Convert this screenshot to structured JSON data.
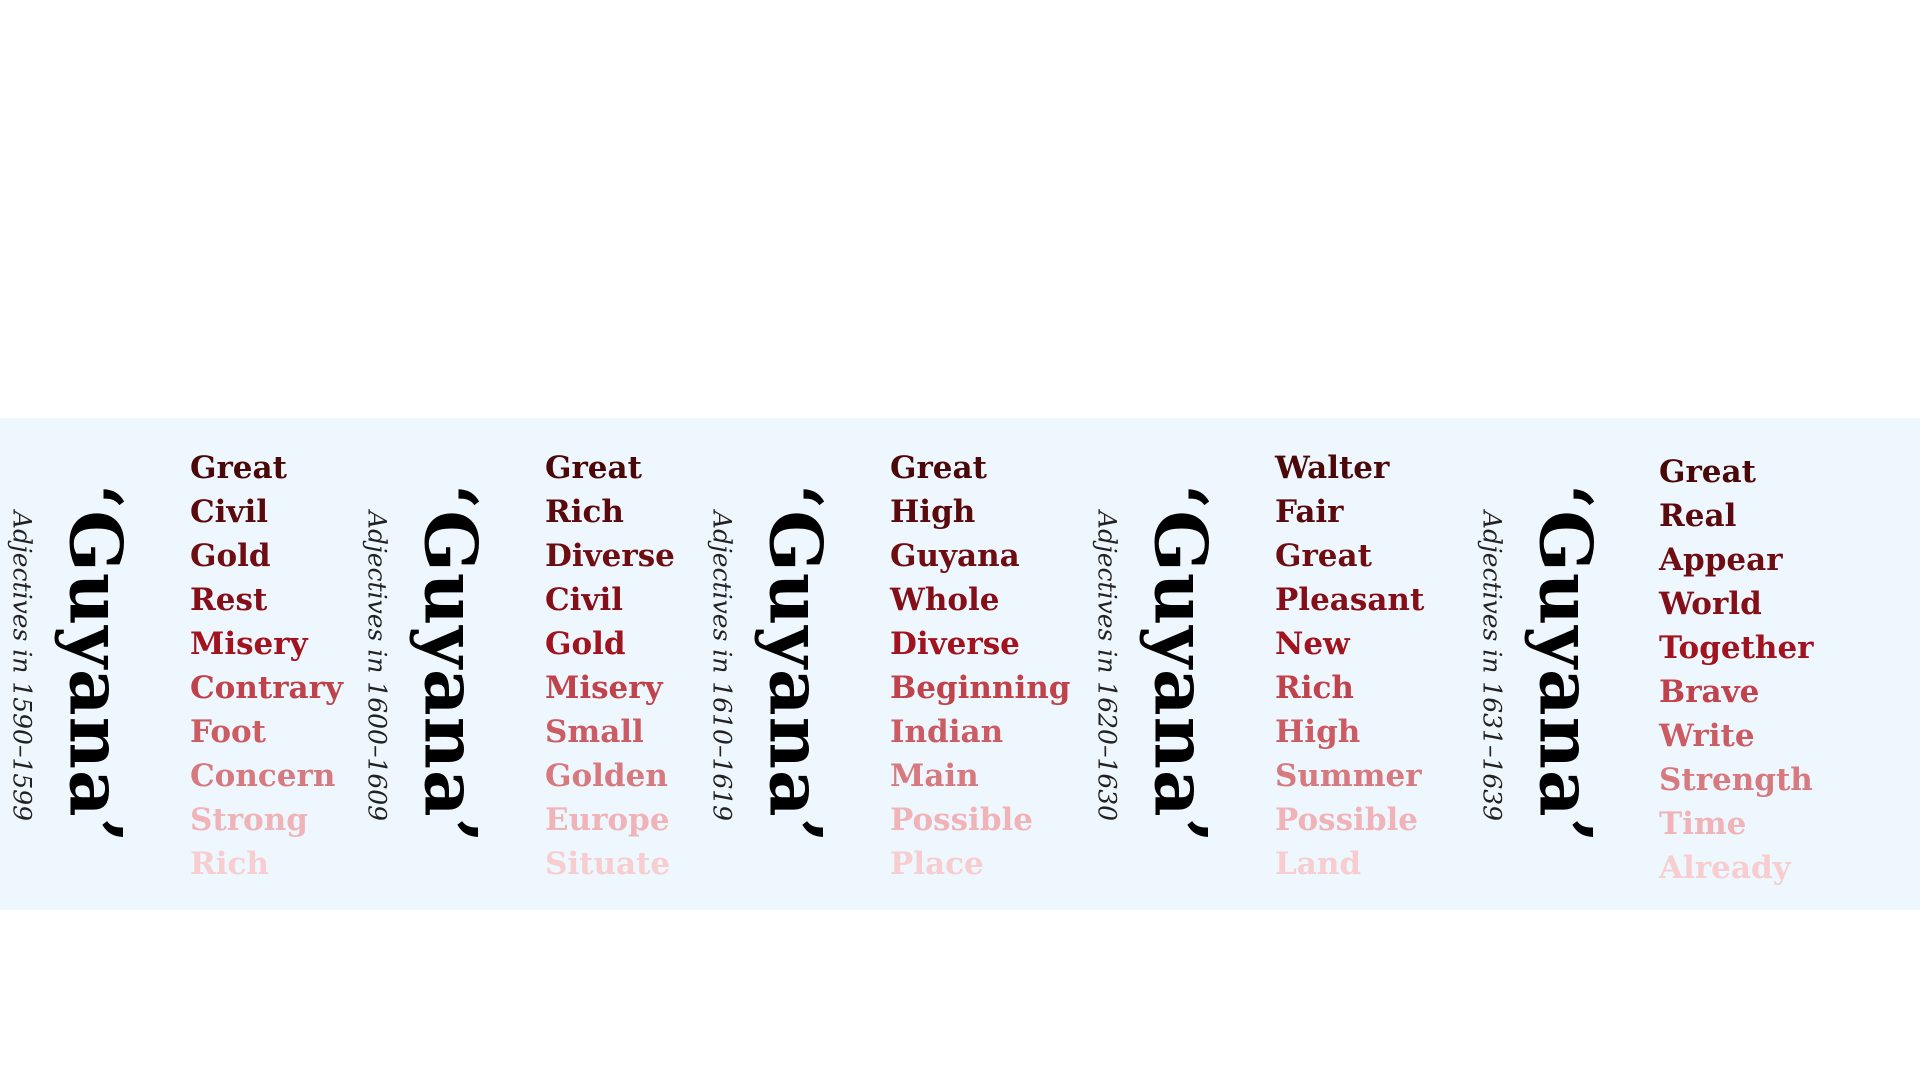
{
  "panels": [
    {
      "title": "‘Guyana’",
      "subtitle": "Adjectives in 1590–1599",
      "words": [
        "Great",
        "Civil",
        "Gold",
        "Rest",
        "Misery",
        "Contrary",
        "Foot",
        "Concern",
        "Strong",
        "Rich"
      ]
    },
    {
      "title": "‘Guyana’",
      "subtitle": "Adjectives in 1600–1609",
      "words": [
        "Great",
        "Rich",
        "Diverse",
        "Civil",
        "Gold",
        "Misery",
        "Small",
        "Golden",
        "Europe",
        "Situate"
      ]
    },
    {
      "title": "‘Guyana’",
      "subtitle": "Adjectives in 1610–1619",
      "words": [
        "Great",
        "High",
        "Guyana",
        "Whole",
        "Diverse",
        "Beginning",
        "Indian",
        "Main",
        "Possible",
        "Place"
      ]
    },
    {
      "title": "‘Guyana’",
      "subtitle": "Adjectives in 1620–1630",
      "words": [
        "Walter",
        "Fair",
        "Great",
        "Pleasant",
        "New",
        "Rich",
        "High",
        "Summer",
        "Possible",
        "Land"
      ]
    },
    {
      "title": "‘Guyana’",
      "subtitle": "Adjectives in 1631–1639",
      "words": [
        "Great",
        "Real",
        "Appear",
        "World",
        "Together",
        "Brave",
        "Write",
        "Strength",
        "Time",
        "Already"
      ]
    }
  ],
  "rank_colors": [
    "#4a0808",
    "#5a0a0c",
    "#6e0d12",
    "#850f18",
    "#a1141f",
    "#c0424b",
    "#cc5c64",
    "#d67a80",
    "#f0b4b8",
    "#f7cdd0"
  ]
}
